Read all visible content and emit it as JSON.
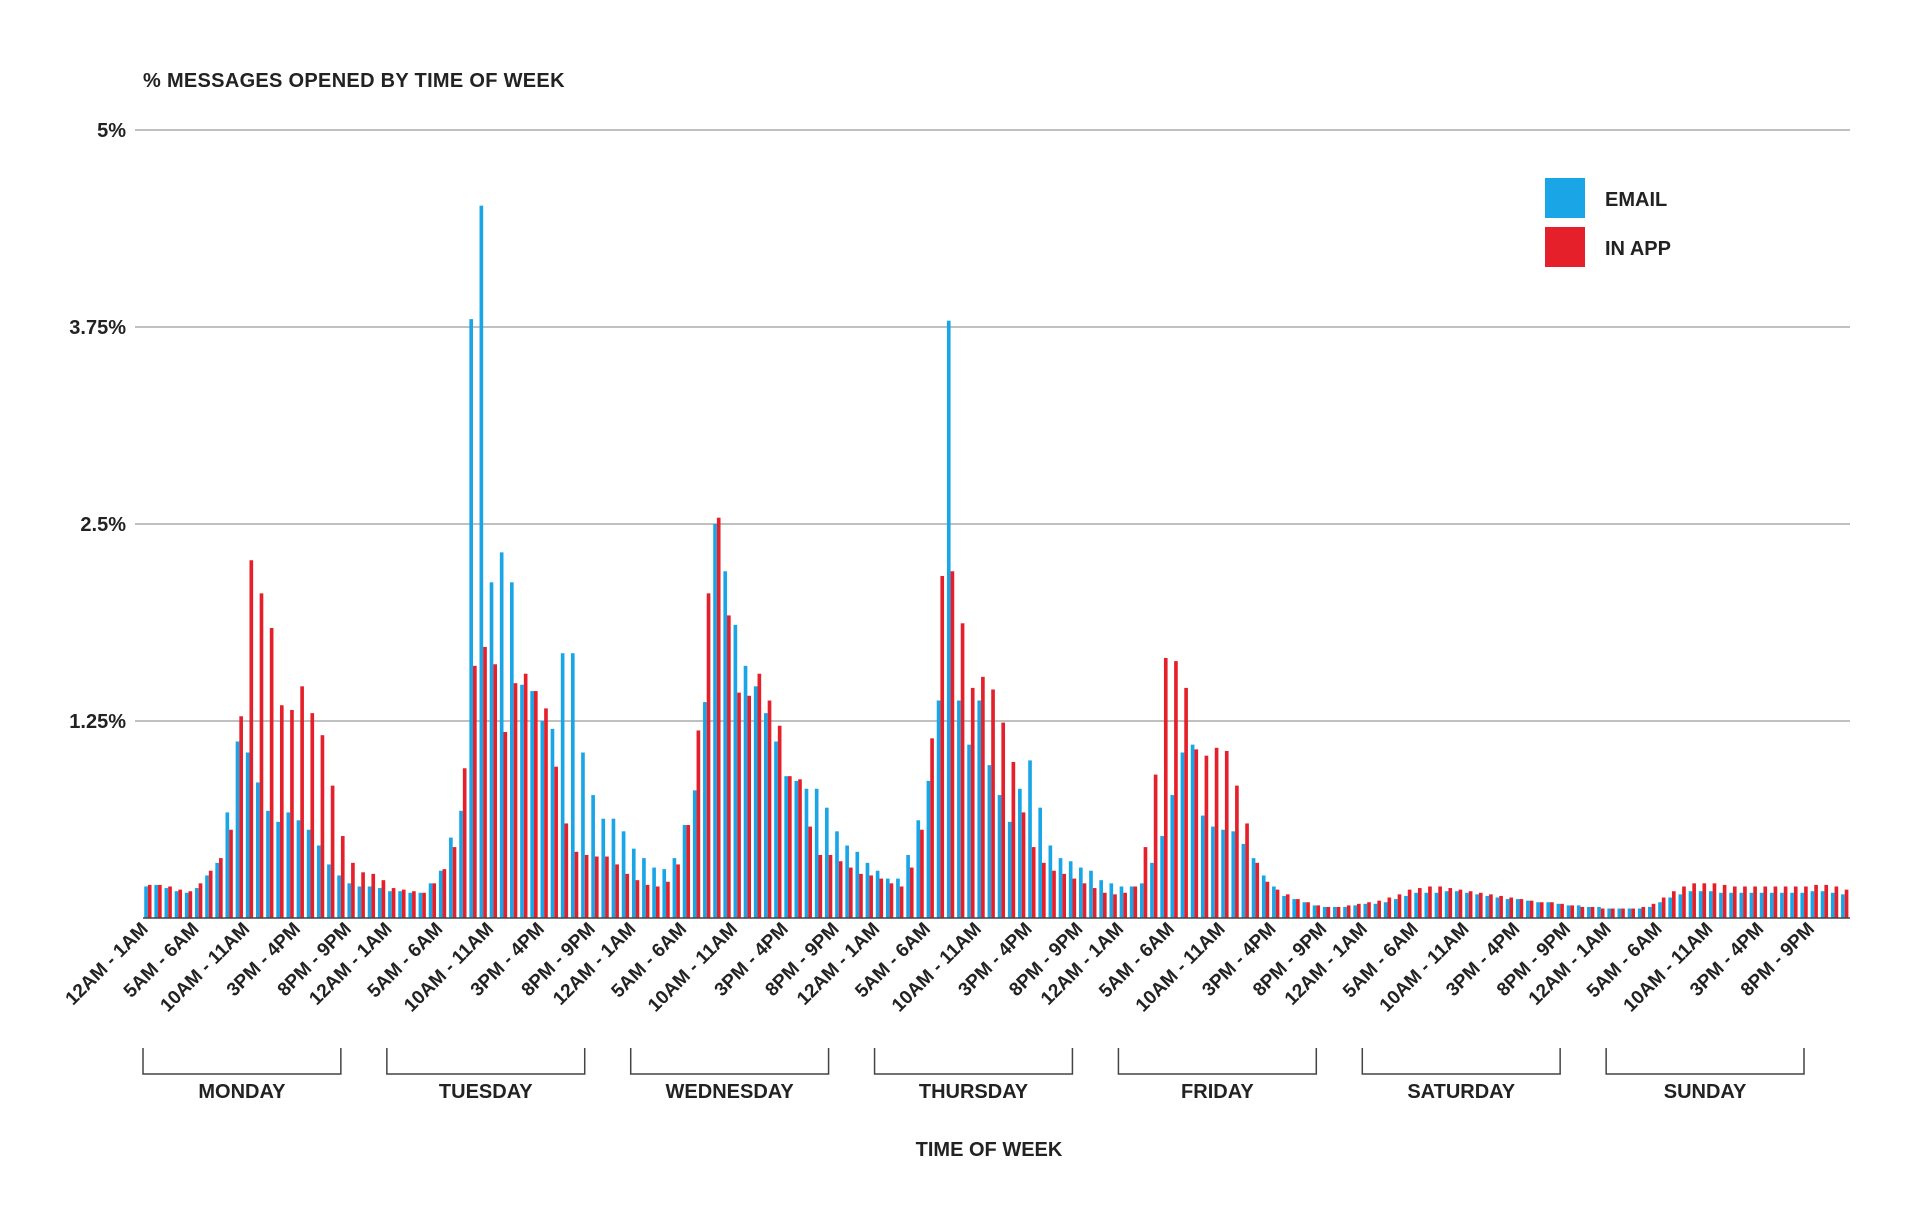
{
  "chart_data": {
    "type": "bar",
    "title": "% MESSAGES OPENED BY TIME OF WEEK",
    "xlabel": "TIME OF WEEK",
    "ylabel": "",
    "ylim": [
      0,
      5
    ],
    "yticks": [
      {
        "value": 1.25,
        "label": "1.25%"
      },
      {
        "value": 2.5,
        "label": "2.5%"
      },
      {
        "value": 3.75,
        "label": "3.75%"
      },
      {
        "value": 5,
        "label": "5%"
      }
    ],
    "grid": true,
    "legend_position": "top-right",
    "hour_tick_labels": [
      "12AM - 1AM",
      "5AM - 6AM",
      "10AM - 11AM",
      "3PM - 4PM",
      "8PM - 9PM"
    ],
    "days": [
      "MONDAY",
      "TUESDAY",
      "WEDNESDAY",
      "THURSDAY",
      "FRIDAY",
      "SATURDAY",
      "SUNDAY"
    ],
    "x": "hourly, Monday 12AM - 1AM through Sunday 11PM - 12AM",
    "series": [
      {
        "name": "EMAIL",
        "color": "#1aa6e6",
        "values": [
          0.2,
          0.21,
          0.19,
          0.17,
          0.16,
          0.19,
          0.27,
          0.35,
          0.67,
          1.12,
          1.05,
          0.86,
          0.68,
          0.61,
          0.67,
          0.62,
          0.56,
          0.46,
          0.34,
          0.27,
          0.22,
          0.2,
          0.2,
          0.19,
          0.17,
          0.17,
          0.16,
          0.16,
          0.22,
          0.3,
          0.51,
          0.68,
          3.8,
          4.52,
          2.13,
          2.32,
          2.13,
          1.48,
          1.44,
          1.25,
          1.2,
          1.68,
          1.68,
          1.05,
          0.78,
          0.63,
          0.63,
          0.55,
          0.44,
          0.38,
          0.32,
          0.31,
          0.38,
          0.59,
          0.81,
          1.37,
          2.5,
          2.2,
          1.86,
          1.6,
          1.47,
          1.3,
          1.12,
          0.9,
          0.87,
          0.82,
          0.82,
          0.7,
          0.55,
          0.46,
          0.42,
          0.35,
          0.3,
          0.25,
          0.25,
          0.4,
          0.62,
          0.87,
          1.38,
          3.79,
          1.38,
          1.1,
          1.38,
          0.97,
          0.78,
          0.61,
          0.82,
          1.0,
          0.7,
          0.46,
          0.38,
          0.36,
          0.32,
          0.3,
          0.24,
          0.22,
          0.2,
          0.2,
          0.22,
          0.35,
          0.52,
          0.78,
          1.05,
          1.1,
          0.65,
          0.58,
          0.56,
          0.55,
          0.47,
          0.38,
          0.27,
          0.2,
          0.14,
          0.12,
          0.1,
          0.08,
          0.07,
          0.07,
          0.07,
          0.08,
          0.09,
          0.09,
          0.1,
          0.12,
          0.14,
          0.16,
          0.16,
          0.16,
          0.17,
          0.17,
          0.16,
          0.15,
          0.14,
          0.13,
          0.12,
          0.12,
          0.11,
          0.1,
          0.1,
          0.09,
          0.08,
          0.08,
          0.07,
          0.07,
          0.06,
          0.06,
          0.06,
          0.06,
          0.07,
          0.1,
          0.13,
          0.15,
          0.17,
          0.17,
          0.17,
          0.16,
          0.16,
          0.16,
          0.16,
          0.16,
          0.16,
          0.16,
          0.16,
          0.16,
          0.17,
          0.17,
          0.16,
          0.15
        ]
      },
      {
        "name": "IN APP",
        "color": "#e5202b",
        "values": [
          0.21,
          0.21,
          0.2,
          0.18,
          0.17,
          0.22,
          0.3,
          0.38,
          0.56,
          1.28,
          2.27,
          2.06,
          1.84,
          1.35,
          1.32,
          1.47,
          1.3,
          1.16,
          0.84,
          0.52,
          0.35,
          0.29,
          0.28,
          0.24,
          0.19,
          0.18,
          0.17,
          0.16,
          0.22,
          0.31,
          0.45,
          0.95,
          1.6,
          1.72,
          1.61,
          1.18,
          1.49,
          1.55,
          1.44,
          1.33,
          0.96,
          0.6,
          0.42,
          0.4,
          0.39,
          0.39,
          0.34,
          0.28,
          0.24,
          0.21,
          0.2,
          0.23,
          0.34,
          0.59,
          1.19,
          2.06,
          2.54,
          1.92,
          1.43,
          1.41,
          1.55,
          1.38,
          1.22,
          0.9,
          0.88,
          0.58,
          0.4,
          0.4,
          0.36,
          0.32,
          0.28,
          0.27,
          0.25,
          0.22,
          0.2,
          0.32,
          0.56,
          1.14,
          2.17,
          2.2,
          1.87,
          1.46,
          1.53,
          1.45,
          1.24,
          0.99,
          0.67,
          0.45,
          0.35,
          0.3,
          0.28,
          0.25,
          0.22,
          0.19,
          0.16,
          0.15,
          0.16,
          0.2,
          0.45,
          0.91,
          1.65,
          1.63,
          1.46,
          1.07,
          1.03,
          1.08,
          1.06,
          0.84,
          0.6,
          0.35,
          0.23,
          0.18,
          0.15,
          0.12,
          0.1,
          0.08,
          0.07,
          0.07,
          0.08,
          0.09,
          0.1,
          0.11,
          0.13,
          0.15,
          0.18,
          0.19,
          0.2,
          0.2,
          0.19,
          0.18,
          0.17,
          0.16,
          0.15,
          0.14,
          0.13,
          0.12,
          0.11,
          0.1,
          0.1,
          0.09,
          0.08,
          0.07,
          0.07,
          0.06,
          0.06,
          0.06,
          0.06,
          0.07,
          0.09,
          0.13,
          0.17,
          0.2,
          0.22,
          0.22,
          0.22,
          0.21,
          0.2,
          0.2,
          0.2,
          0.2,
          0.2,
          0.2,
          0.2,
          0.2,
          0.21,
          0.21,
          0.2,
          0.18
        ]
      }
    ]
  }
}
